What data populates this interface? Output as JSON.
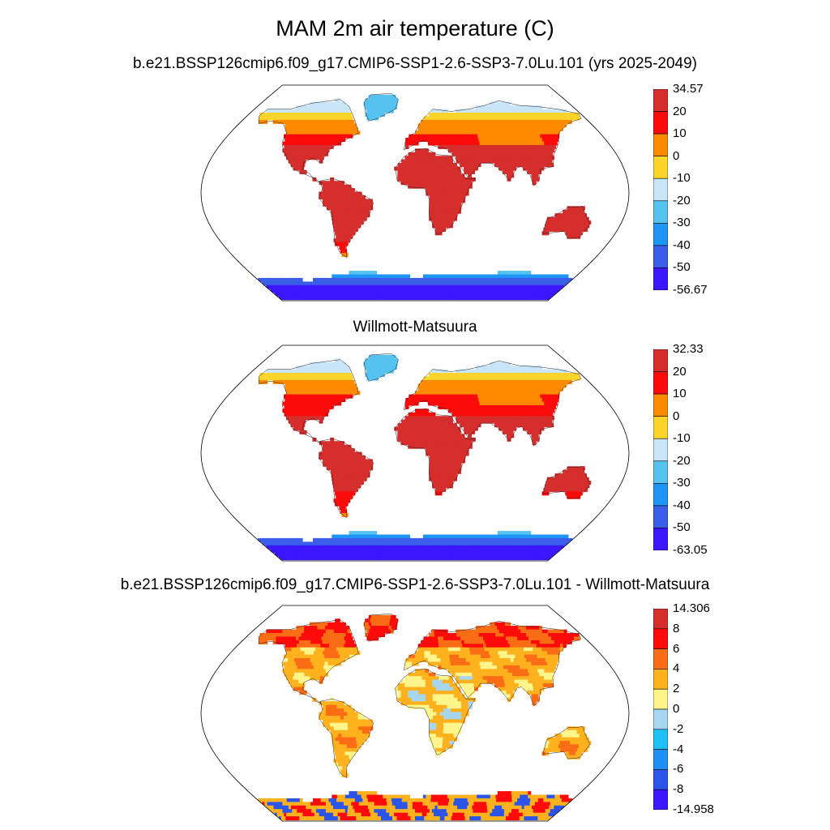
{
  "title": "MAM 2m air temperature (C)",
  "panels": [
    {
      "title": "b.e21.BSSP126cmip6.f09_g17.CMIP6-SSP1-2.6-SSP3-7.0Lu.101 (yrs 2025-2049)",
      "kind": "absolute",
      "colorbar": {
        "labels": [
          "34.57",
          "20",
          "10",
          "0",
          "-10",
          "-20",
          "-30",
          "-40",
          "-50",
          "-56.67"
        ],
        "colors": [
          "#d62d2d",
          "#fd0a0a",
          "#ff8a00",
          "#ffd42a",
          "#c9e6f8",
          "#56c2f0",
          "#1e96f5",
          "#3b5ee8",
          "#3c16ff"
        ]
      }
    },
    {
      "title": "Willmott-Matsuura",
      "kind": "absolute",
      "colorbar": {
        "labels": [
          "32.33",
          "20",
          "10",
          "0",
          "-10",
          "-20",
          "-30",
          "-40",
          "-50",
          "-63.05"
        ],
        "colors": [
          "#d62d2d",
          "#fd0a0a",
          "#ff8a00",
          "#ffd42a",
          "#c9e6f8",
          "#56c2f0",
          "#1e96f5",
          "#3b5ee8",
          "#3c16ff"
        ]
      }
    },
    {
      "title": "b.e21.BSSP126cmip6.f09_g17.CMIP6-SSP1-2.6-SSP3-7.0Lu.101 - Willmott-Matsuura",
      "kind": "difference",
      "colorbar": {
        "labels": [
          "14.306",
          "8",
          "6",
          "4",
          "2",
          "0",
          "-2",
          "-4",
          "-6",
          "-8",
          "-14.958"
        ],
        "colors": [
          "#d62d2d",
          "#fd0a0a",
          "#fb6d14",
          "#ffb21e",
          "#fff58a",
          "#a7d6f0",
          "#1ec0f5",
          "#1e8ff5",
          "#2b55e8",
          "#3c16ff"
        ]
      }
    }
  ]
}
